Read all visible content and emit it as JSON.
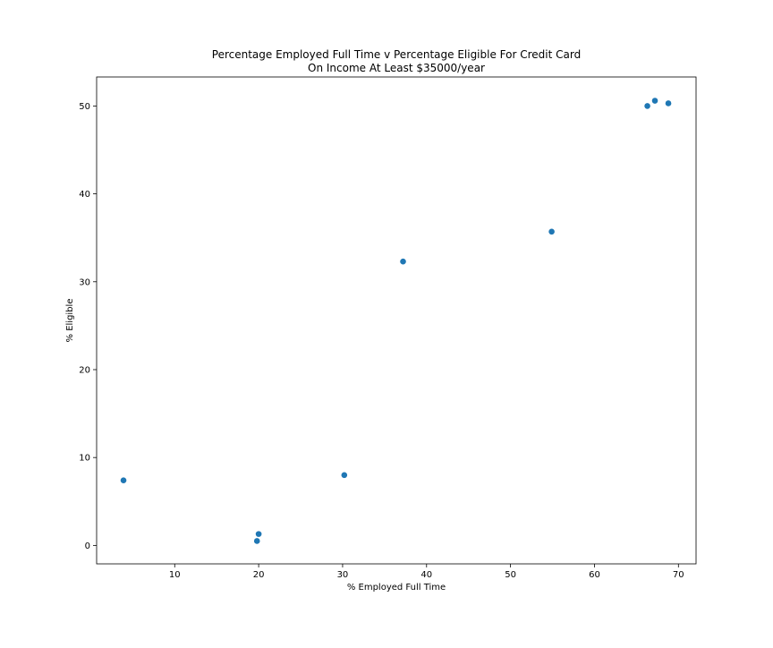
{
  "chart_data": {
    "type": "scatter",
    "title": "Percentage Employed Full Time v Percentage Eligible For Credit Card",
    "subtitle": "On Income At Least $35000/year",
    "xlabel": "% Employed Full Time",
    "ylabel": "% Eligible",
    "xlim": [
      0.7,
      72.1
    ],
    "ylim": [
      -2.1,
      53.3
    ],
    "xticks": [
      10,
      20,
      30,
      40,
      50,
      60,
      70
    ],
    "yticks": [
      0,
      10,
      20,
      30,
      40,
      50
    ],
    "grid": false,
    "marker_color": "#1f77b4",
    "points": [
      {
        "x": 3.9,
        "y": 7.4
      },
      {
        "x": 19.8,
        "y": 0.5
      },
      {
        "x": 20.0,
        "y": 1.3
      },
      {
        "x": 30.2,
        "y": 8.0
      },
      {
        "x": 37.2,
        "y": 32.3
      },
      {
        "x": 54.9,
        "y": 35.7
      },
      {
        "x": 66.3,
        "y": 50.0
      },
      {
        "x": 67.2,
        "y": 50.6
      },
      {
        "x": 68.8,
        "y": 50.3
      }
    ]
  }
}
